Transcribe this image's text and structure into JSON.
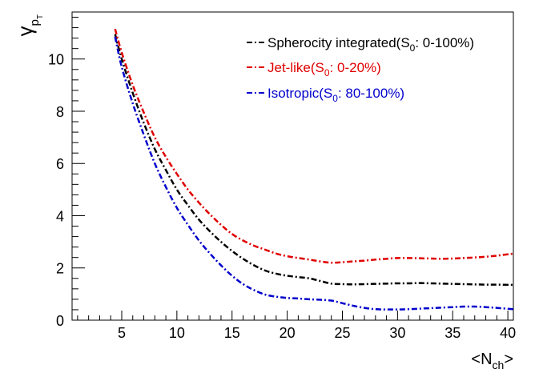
{
  "chart_data": {
    "type": "line",
    "title": "",
    "xlabel": "<Nch>",
    "xlabel_parts": {
      "main": "<N",
      "sub": "ch",
      "close": ">"
    },
    "ylabel": "γpT",
    "ylabel_parts": {
      "main": "γ",
      "sub": "p",
      "subsub": "T"
    },
    "xlim": [
      0.5,
      40.5
    ],
    "ylim": [
      0,
      11.8
    ],
    "xticks": [
      5,
      10,
      15,
      20,
      25,
      30,
      35,
      40
    ],
    "yticks": [
      0,
      2,
      4,
      6,
      8,
      10
    ],
    "grid": false,
    "legend_position": "top-right",
    "series": [
      {
        "name": "Spherocity integrated(S0: 0-100%)",
        "legend_parts": {
          "pre": "Spherocity integrated(S",
          "sub": "0",
          "post": ": 0-100%)"
        },
        "color": "#000000",
        "x": [
          4.4,
          5,
          6,
          7,
          8,
          9,
          10,
          11,
          12,
          13,
          14,
          15,
          16,
          17,
          18,
          19,
          20,
          21,
          22,
          23,
          24,
          25,
          26,
          27,
          28,
          29,
          30,
          31,
          32,
          33,
          34,
          35,
          36,
          37,
          38,
          39,
          40.5
        ],
        "y": [
          10.95,
          10.0,
          8.7,
          7.55,
          6.55,
          5.75,
          5.0,
          4.4,
          3.85,
          3.4,
          3.0,
          2.65,
          2.35,
          2.1,
          1.9,
          1.78,
          1.7,
          1.65,
          1.6,
          1.5,
          1.4,
          1.38,
          1.37,
          1.38,
          1.39,
          1.4,
          1.41,
          1.41,
          1.42,
          1.41,
          1.4,
          1.39,
          1.38,
          1.37,
          1.36,
          1.36,
          1.35
        ]
      },
      {
        "name": "Jet-like(S0: 0-20%)",
        "legend_parts": {
          "pre": "Jet-like(S",
          "sub": "0",
          "post": ": 0-20%)"
        },
        "color": "#e00000",
        "x": [
          4.4,
          5,
          6,
          7,
          8,
          9,
          10,
          11,
          12,
          13,
          14,
          15,
          16,
          17,
          18,
          19,
          20,
          21,
          22,
          23,
          24,
          25,
          26,
          27,
          28,
          29,
          30,
          31,
          32,
          33,
          34,
          35,
          36,
          37,
          38,
          39,
          40.5
        ],
        "y": [
          11.15,
          10.25,
          9.0,
          7.95,
          7.0,
          6.25,
          5.6,
          5.0,
          4.5,
          4.05,
          3.65,
          3.3,
          3.05,
          2.85,
          2.7,
          2.55,
          2.45,
          2.38,
          2.32,
          2.25,
          2.2,
          2.22,
          2.25,
          2.28,
          2.32,
          2.35,
          2.38,
          2.38,
          2.37,
          2.36,
          2.35,
          2.36,
          2.38,
          2.4,
          2.43,
          2.47,
          2.55
        ]
      },
      {
        "name": "Isotropic(S0: 80-100%)",
        "legend_parts": {
          "pre": "Isotropic(S",
          "sub": "0",
          "post": ": 80-100%)"
        },
        "color": "#0000cc",
        "x": [
          4.4,
          5,
          6,
          7,
          8,
          9,
          10,
          11,
          12,
          13,
          14,
          15,
          16,
          17,
          18,
          19,
          20,
          21,
          22,
          23,
          24,
          25,
          26,
          27,
          28,
          29,
          30,
          31,
          32,
          33,
          34,
          35,
          36,
          37,
          38,
          39,
          40.5
        ],
        "y": [
          10.85,
          9.7,
          8.3,
          7.1,
          6.0,
          5.1,
          4.3,
          3.65,
          3.05,
          2.55,
          2.1,
          1.7,
          1.38,
          1.15,
          0.98,
          0.9,
          0.85,
          0.83,
          0.8,
          0.78,
          0.75,
          0.65,
          0.55,
          0.47,
          0.42,
          0.41,
          0.41,
          0.42,
          0.44,
          0.46,
          0.48,
          0.5,
          0.52,
          0.52,
          0.5,
          0.47,
          0.42
        ]
      }
    ]
  }
}
